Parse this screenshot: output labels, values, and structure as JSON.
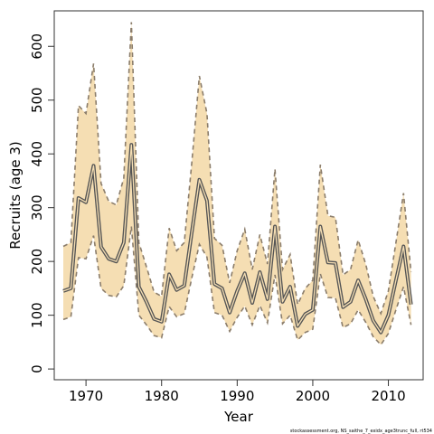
{
  "chart_data": {
    "type": "line",
    "xlabel": "Year",
    "ylabel": "Recruits (age 3)",
    "credit": "stockassessment.org, NS_saithe_7_exidx_age3trunc_full, rt534",
    "xlim": [
      1965.8,
      2014.6
    ],
    "ylim": [
      -20,
      666
    ],
    "x_ticks": [
      1970,
      1980,
      1990,
      2000,
      2010
    ],
    "y_ticks": [
      0,
      100,
      200,
      300,
      400,
      500,
      600
    ],
    "colors": {
      "band": "#f5deb3",
      "estimate": "#555555",
      "bounds": "#8b7d6b",
      "frame": "#333333"
    },
    "x": [
      1967,
      1968,
      1969,
      1970,
      1971,
      1972,
      1973,
      1974,
      1975,
      1976,
      1977,
      1978,
      1979,
      1980,
      1981,
      1982,
      1983,
      1984,
      1985,
      1986,
      1987,
      1988,
      1989,
      1990,
      1991,
      1992,
      1993,
      1994,
      1995,
      1996,
      1997,
      1998,
      1999,
      2000,
      2001,
      2002,
      2003,
      2004,
      2005,
      2006,
      2007,
      2008,
      2009,
      2010,
      2011,
      2012,
      2013
    ],
    "series": [
      {
        "name": "",
        "role": "estimate",
        "values": [
          145,
          150,
          318,
          310,
          378,
          227,
          205,
          200,
          235,
          417,
          153,
          125,
          93,
          88,
          176,
          147,
          155,
          255,
          352,
          313,
          158,
          150,
          105,
          145,
          178,
          123,
          180,
          130,
          265,
          125,
          153,
          80,
          102,
          110,
          265,
          198,
          197,
          115,
          125,
          165,
          130,
          90,
          68,
          100,
          165,
          228,
          120
        ]
      },
      {
        "name": "",
        "role": "upper",
        "values": [
          228,
          235,
          490,
          475,
          568,
          345,
          312,
          305,
          355,
          645,
          235,
          190,
          143,
          135,
          262,
          220,
          235,
          385,
          545,
          475,
          243,
          230,
          160,
          220,
          260,
          185,
          250,
          195,
          372,
          185,
          213,
          120,
          150,
          165,
          380,
          285,
          282,
          175,
          185,
          240,
          195,
          135,
          103,
          145,
          235,
          327,
          180
        ]
      },
      {
        "name": "",
        "role": "lower",
        "values": [
          92,
          97,
          207,
          205,
          248,
          150,
          137,
          134,
          155,
          265,
          100,
          82,
          62,
          58,
          116,
          97,
          103,
          170,
          232,
          208,
          105,
          100,
          70,
          96,
          117,
          82,
          118,
          86,
          175,
          84,
          100,
          54,
          68,
          74,
          177,
          133,
          132,
          77,
          84,
          110,
          87,
          60,
          45,
          66,
          110,
          153,
          82
        ]
      }
    ]
  }
}
